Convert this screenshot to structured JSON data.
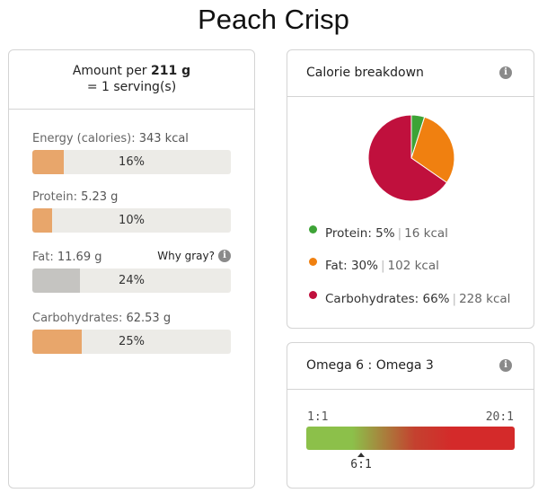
{
  "title": "Peach Crisp",
  "nutrition": {
    "header_prefix": "Amount per ",
    "header_amount": "211 g",
    "header_serving": "= 1 serving(s)",
    "why_gray": "Why gray?",
    "rows": [
      {
        "label": "Energy (calories):",
        "value": "343 kcal",
        "percent_text": "16%",
        "percent": 16,
        "gray": false
      },
      {
        "label": "Protein:",
        "value": "5.23 g",
        "percent_text": "10%",
        "percent": 10,
        "gray": false
      },
      {
        "label": "Fat:",
        "value": "11.69 g",
        "percent_text": "24%",
        "percent": 24,
        "gray": true
      },
      {
        "label": "Carbohydrates:",
        "value": "62.53 g",
        "percent_text": "25%",
        "percent": 25,
        "gray": false
      }
    ]
  },
  "calorie_breakdown": {
    "title": "Calorie breakdown",
    "items": [
      {
        "name": "Protein:",
        "percent": "5%",
        "kcal": "16 kcal",
        "color": "#3da336"
      },
      {
        "name": "Fat:",
        "percent": "30%",
        "kcal": "102 kcal",
        "color": "#f08010"
      },
      {
        "name": "Carbohydrates:",
        "percent": "66%",
        "kcal": "228 kcal",
        "color": "#c0103d"
      }
    ]
  },
  "chart_data": {
    "type": "pie",
    "categories": [
      "Protein",
      "Fat",
      "Carbohydrates"
    ],
    "values": [
      5,
      30,
      66
    ],
    "colors": [
      "#3da336",
      "#f08010",
      "#c0103d"
    ]
  },
  "omega": {
    "title": "Omega 6 : Omega 3",
    "min_label": "1:1",
    "max_label": "20:1",
    "value_label": "6:1",
    "ratio": 6,
    "min": 1,
    "max": 20
  }
}
